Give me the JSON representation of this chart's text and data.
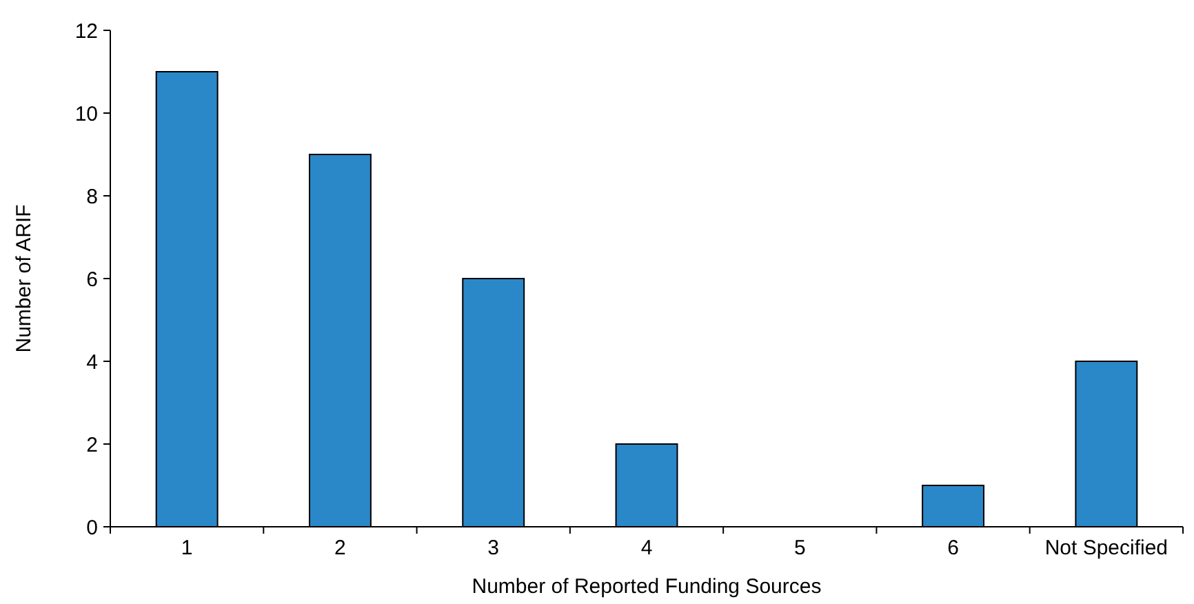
{
  "chart_data": {
    "type": "bar",
    "categories": [
      "1",
      "2",
      "3",
      "4",
      "5",
      "6",
      "Not Specified"
    ],
    "values": [
      11,
      9,
      6,
      2,
      0,
      1,
      4
    ],
    "color": "#2a87c8",
    "ylim": [
      0,
      12
    ],
    "yticks": [
      0,
      2,
      4,
      6,
      8,
      10,
      12
    ],
    "grid": false,
    "xlabel": "Number of Reported Funding Sources",
    "ylabel": "Number of ARIF"
  }
}
